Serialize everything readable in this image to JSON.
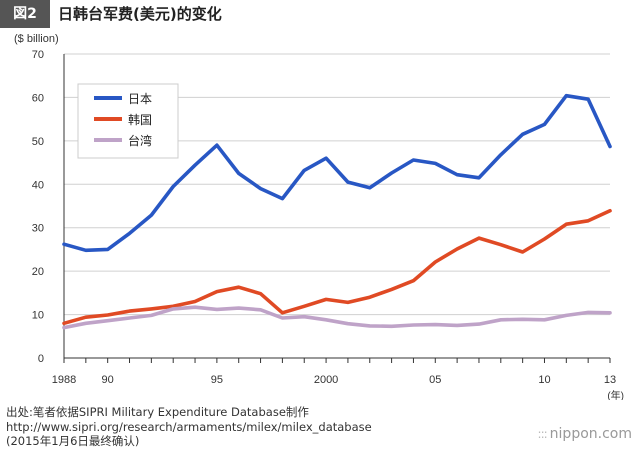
{
  "figure": {
    "label": "図2",
    "title": "日韩台军费(美元)的变化"
  },
  "chart_data": {
    "type": "line",
    "ylabel": "($ billion)",
    "ylim": [
      0,
      70
    ],
    "yticks": [
      0,
      10,
      20,
      30,
      40,
      50,
      60,
      70
    ],
    "xlim": [
      1988,
      2013
    ],
    "xticks": [
      {
        "value": 1988,
        "label": "1988"
      },
      {
        "value": 1990,
        "label": "90"
      },
      {
        "value": 1995,
        "label": "95"
      },
      {
        "value": 2000,
        "label": "2000"
      },
      {
        "value": 2005,
        "label": "05"
      },
      {
        "value": 2010,
        "label": "10"
      },
      {
        "value": 2013,
        "label": "13"
      }
    ],
    "xunit": "(年)",
    "grid": true,
    "legend_position": "top-left",
    "x": [
      1988,
      1989,
      1990,
      1991,
      1992,
      1993,
      1994,
      1995,
      1996,
      1997,
      1998,
      1999,
      2000,
      2001,
      2002,
      2003,
      2004,
      2005,
      2006,
      2007,
      2008,
      2009,
      2010,
      2011,
      2012,
      2013
    ],
    "series": [
      {
        "name": "日本",
        "color": "#2857c4",
        "values": [
          26.2,
          24.8,
          25.0,
          28.7,
          32.9,
          39.5,
          44.4,
          49.0,
          42.5,
          39.0,
          36.7,
          43.2,
          46.0,
          40.5,
          39.2,
          42.6,
          45.6,
          44.8,
          42.2,
          41.5,
          46.8,
          51.5,
          53.8,
          60.4,
          59.6,
          48.7
        ]
      },
      {
        "name": "韩国",
        "color": "#e04a24",
        "values": [
          8.0,
          9.4,
          9.9,
          10.8,
          11.3,
          11.9,
          13.0,
          15.3,
          16.3,
          14.8,
          10.4,
          11.9,
          13.5,
          12.8,
          14.0,
          15.8,
          17.8,
          22.1,
          25.1,
          27.6,
          26.1,
          24.4,
          27.4,
          30.8,
          31.6,
          33.9
        ]
      },
      {
        "name": "台湾",
        "color": "#bfa3c8",
        "values": [
          7.0,
          8.0,
          8.6,
          9.2,
          9.8,
          11.3,
          11.7,
          11.2,
          11.5,
          11.1,
          9.2,
          9.5,
          8.8,
          7.9,
          7.4,
          7.3,
          7.6,
          7.7,
          7.5,
          7.8,
          8.8,
          8.9,
          8.8,
          9.8,
          10.5,
          10.4
        ]
      }
    ]
  },
  "footer": {
    "line1": "出处:笔者依据SIPRI Military Expenditure Database制作",
    "line2": "http://www.sipri.org/research/armaments/milex/milex_database",
    "line3": "(2015年1月6日最终确认)"
  },
  "brand": {
    "text": "nippon.com"
  }
}
